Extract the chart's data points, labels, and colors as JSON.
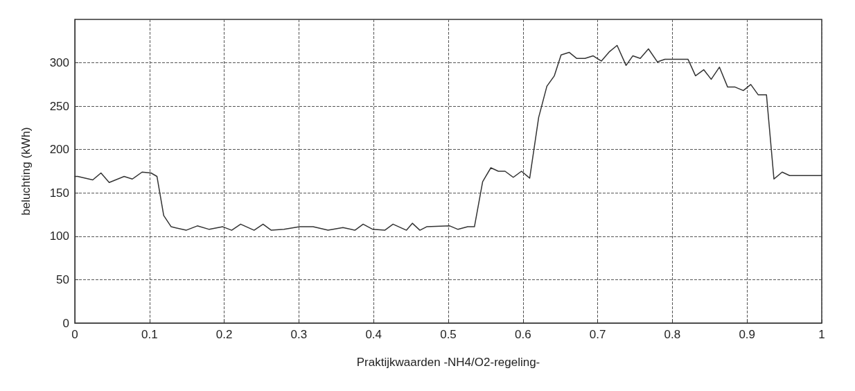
{
  "chart_data": {
    "type": "line",
    "xlabel": "Praktijkwaarden -NH4/O2-regeling-",
    "ylabel": "beluchting (kWh)",
    "xlim": [
      0,
      1
    ],
    "xticks": [
      0,
      0.1,
      0.2,
      0.3,
      0.4,
      0.5,
      0.6,
      0.7,
      0.8,
      0.9,
      1
    ],
    "ylim": [
      0,
      350
    ],
    "yticks": [
      0,
      50,
      100,
      150,
      200,
      250,
      300
    ],
    "grid": true,
    "marker": "none",
    "line_style": "solid",
    "series": [
      {
        "color": "#333333",
        "x": [
          0,
          0.004,
          0.024,
          0.035,
          0.046,
          0.066,
          0.077,
          0.09,
          0.102,
          0.11,
          0.119,
          0.129,
          0.149,
          0.164,
          0.18,
          0.198,
          0.21,
          0.222,
          0.24,
          0.252,
          0.263,
          0.28,
          0.301,
          0.319,
          0.339,
          0.359,
          0.375,
          0.386,
          0.399,
          0.415,
          0.426,
          0.444,
          0.452,
          0.462,
          0.471,
          0.502,
          0.513,
          0.526,
          0.535,
          0.546,
          0.557,
          0.567,
          0.576,
          0.587,
          0.598,
          0.609,
          0.621,
          0.632,
          0.642,
          0.651,
          0.662,
          0.672,
          0.683,
          0.694,
          0.705,
          0.716,
          0.726,
          0.738,
          0.747,
          0.757,
          0.768,
          0.78,
          0.79,
          0.821,
          0.831,
          0.842,
          0.852,
          0.863,
          0.874,
          0.884,
          0.895,
          0.905,
          0.915,
          0.926,
          0.936,
          0.947,
          0.957,
          1
        ],
        "values": [
          169,
          169,
          165,
          173,
          162,
          169,
          166,
          174,
          173,
          169,
          124,
          111,
          107,
          112,
          108,
          111,
          107,
          114,
          107,
          114,
          107,
          108,
          111,
          111,
          107,
          110,
          107,
          114,
          108,
          107,
          114,
          107,
          115,
          107,
          111,
          112,
          108,
          111,
          111,
          163,
          179,
          175,
          175,
          168,
          175,
          167,
          237,
          273,
          285,
          309,
          312,
          305,
          305,
          308,
          302,
          313,
          320,
          297,
          308,
          305,
          316,
          301,
          304,
          304,
          285,
          292,
          281,
          295,
          272,
          272,
          268,
          275,
          263,
          263,
          166,
          174,
          170,
          170
        ]
      }
    ]
  }
}
